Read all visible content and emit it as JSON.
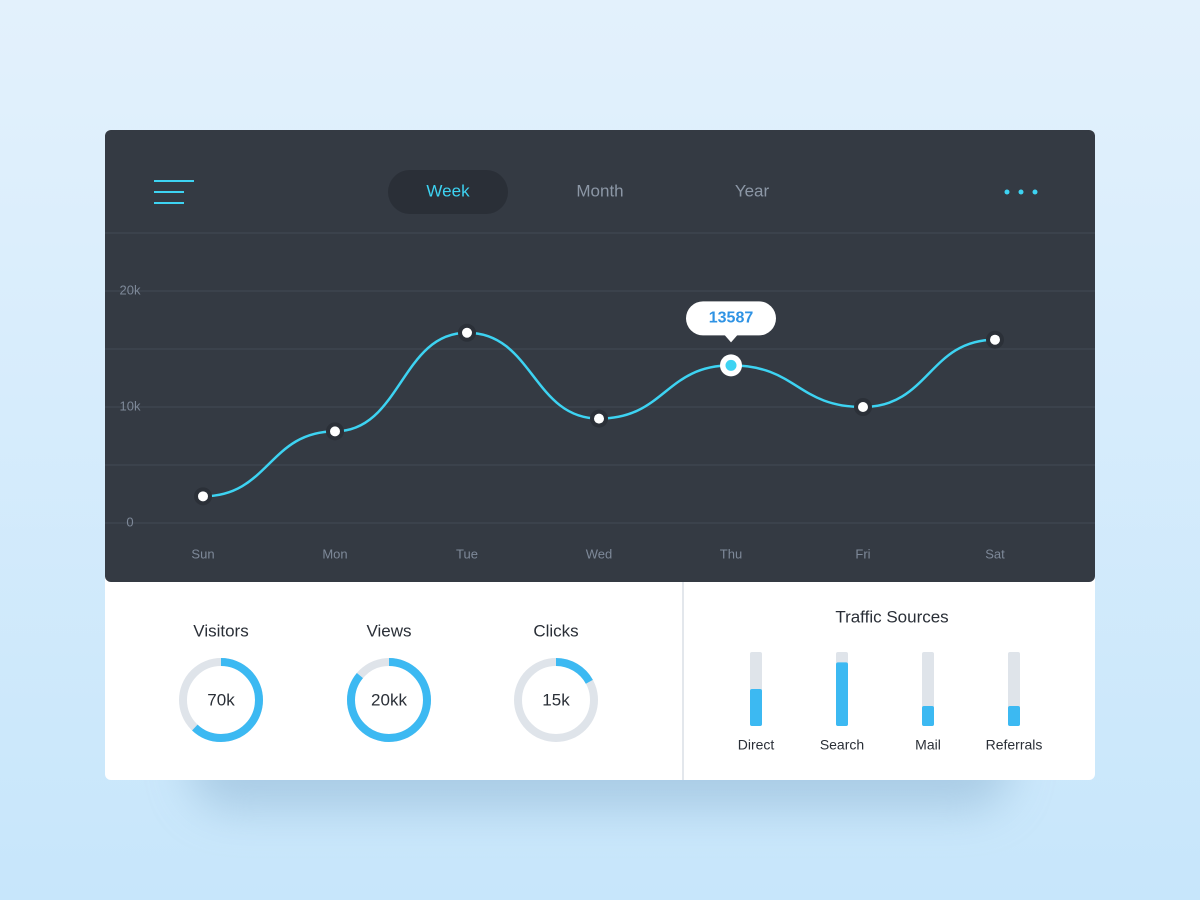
{
  "nav": {
    "tabs": [
      "Week",
      "Month",
      "Year"
    ],
    "active": 0
  },
  "chart_data": {
    "type": "line",
    "categories": [
      "Sun",
      "Mon",
      "Tue",
      "Wed",
      "Thu",
      "Fri",
      "Sat"
    ],
    "series": [
      {
        "color": "#3dd3f2",
        "values": [
          2300,
          7900,
          16400,
          9000,
          13587,
          10000,
          15800
        ]
      }
    ],
    "highlight": 4,
    "ylim": [
      0,
      25000
    ],
    "yticks": [
      0,
      {
        "value": 10000,
        "label": "10k"
      },
      {
        "value": 20000,
        "label": "20k"
      }
    ],
    "grid_lines": [
      0,
      5000,
      10000,
      15000,
      20000,
      25000
    ],
    "grid": true
  },
  "stats": [
    {
      "label": "Visitors",
      "value": "70k",
      "fill": 0.62
    },
    {
      "label": "Views",
      "value": "20kk",
      "fill": 0.86
    },
    {
      "label": "Clicks",
      "value": "15k",
      "fill": 0.17
    }
  ],
  "stats_color": "#3cb9f2",
  "traffic": {
    "title": "Traffic Sources",
    "color": "#3cb9f2",
    "sources": [
      {
        "label": "Direct",
        "fill": 0.5
      },
      {
        "label": "Search",
        "fill": 0.86
      },
      {
        "label": "Mail",
        "fill": 0.27
      },
      {
        "label": "Referrals",
        "fill": 0.27
      }
    ]
  }
}
